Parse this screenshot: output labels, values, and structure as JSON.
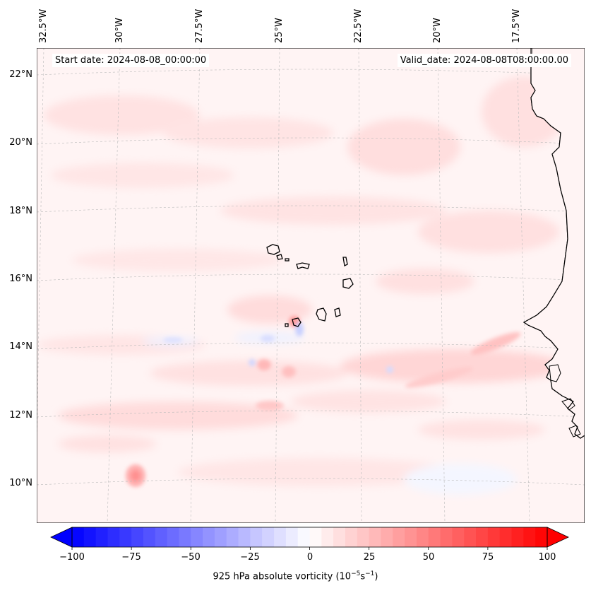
{
  "header": {
    "start_date": "Start date: 2024-08-08_00:00:00",
    "valid_date": "Valid_date: 2024-08-08T08:00:00.00"
  },
  "map": {
    "projection": "lambert-conformal",
    "gridlines": true,
    "longitude_labels": [
      "32.5°W",
      "30°W",
      "27.5°W",
      "25°W",
      "22.5°W",
      "20°W",
      "17.5°W"
    ],
    "latitude_labels": [
      "22°N",
      "20°N",
      "18°N",
      "16°N",
      "14°N",
      "12°N",
      "10°N"
    ],
    "field": "925 hPa absolute vorticity",
    "features": [
      "West African coastline",
      "Cape Verde islands"
    ]
  },
  "colorbar": {
    "label_text": "925 hPa absolute vorticity (10",
    "label_exp1": "−5",
    "label_mid": "s",
    "label_exp2": "−1",
    "label_close": ")",
    "ticks": [
      "−100",
      "−75",
      "−50",
      "−25",
      "0",
      "25",
      "50",
      "75",
      "100"
    ],
    "min": -100,
    "max": 100,
    "step": 5,
    "colormap": "bwr",
    "low_color": "#0000ff",
    "mid_color": "#ffffff",
    "high_color": "#ff0000",
    "extend": "both"
  }
}
